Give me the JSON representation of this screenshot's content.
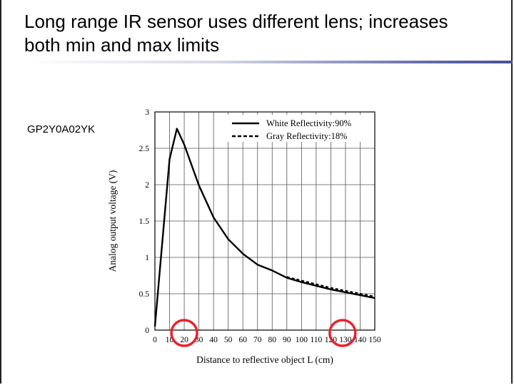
{
  "slide": {
    "title": "Long range IR sensor uses different lens; increases\nboth min and max limits",
    "model_label": "GP2Y0A02YK"
  },
  "chart_data": {
    "type": "line",
    "title": "",
    "xlabel": "Distance to reflective object L (cm)",
    "ylabel": "Analog output voltage (V)",
    "xlim": [
      0,
      150
    ],
    "ylim": [
      0,
      3
    ],
    "x_ticks": [
      0,
      10,
      20,
      30,
      40,
      50,
      60,
      70,
      80,
      90,
      100,
      110,
      120,
      130,
      140,
      150
    ],
    "x_tick_labels": [
      "0",
      "10",
      "20",
      "30",
      "40",
      "50",
      "60",
      "70",
      "80",
      "90",
      "100",
      "110",
      "120",
      "130",
      "140",
      "150"
    ],
    "y_ticks": [
      0,
      0.5,
      1,
      1.5,
      2,
      2.5,
      3
    ],
    "y_tick_labels": [
      "0",
      "0.5",
      "1",
      "1.5",
      "2",
      "2.5",
      "3"
    ],
    "grid": true,
    "legend_position": "top-right",
    "series": [
      {
        "name": "White Reflectivity:90%",
        "style": "solid",
        "x": [
          0,
          10,
          15,
          20,
          30,
          40,
          50,
          60,
          70,
          80,
          90,
          100,
          110,
          120,
          130,
          140,
          150
        ],
        "y": [
          0.05,
          2.35,
          2.77,
          2.55,
          1.99,
          1.55,
          1.25,
          1.05,
          0.9,
          0.82,
          0.72,
          0.66,
          0.61,
          0.56,
          0.52,
          0.48,
          0.44
        ]
      },
      {
        "name": "Gray Reflectivity:18%",
        "style": "dashed",
        "x": [
          90,
          100,
          110,
          120,
          130,
          140,
          150
        ],
        "y": [
          0.73,
          0.68,
          0.63,
          0.58,
          0.54,
          0.5,
          0.46
        ]
      }
    ],
    "annotations": [
      {
        "type": "circle",
        "x": 20,
        "y": -0.02,
        "color": "#e8232d"
      },
      {
        "type": "circle",
        "x": 128,
        "y": -0.02,
        "color": "#e8232d"
      }
    ],
    "colors": {
      "line": "#000000",
      "grid": "#555555",
      "highlight": "#e8232d"
    }
  }
}
